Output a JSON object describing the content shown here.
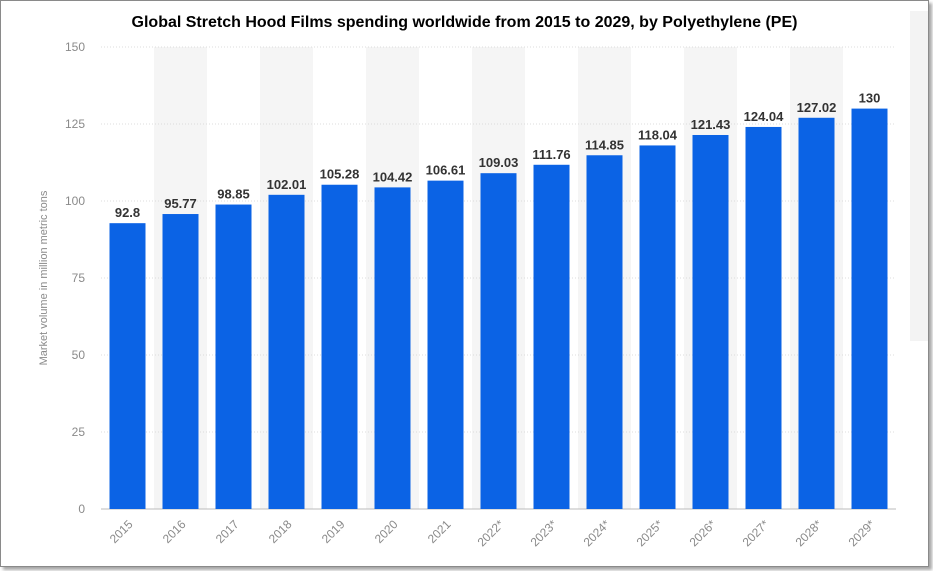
{
  "chart_data": {
    "type": "bar",
    "title": "Global Stretch Hood Films spending worldwide from 2015 to 2029, by Polyethylene (PE)",
    "ylabel": "Market volume in million metric tons",
    "xlabel": "",
    "categories": [
      "2015",
      "2016",
      "2017",
      "2018",
      "2019",
      "2020",
      "2021",
      "2022*",
      "2023*",
      "2024*",
      "2025*",
      "2026*",
      "2027*",
      "2028*",
      "2029*"
    ],
    "values": [
      92.8,
      95.77,
      98.85,
      102.01,
      105.28,
      104.42,
      106.61,
      109.03,
      111.76,
      114.85,
      118.04,
      121.43,
      124.04,
      127.02,
      130
    ],
    "value_labels": [
      "92.8",
      "95.77",
      "98.85",
      "102.01",
      "105.28",
      "104.42",
      "106.61",
      "109.03",
      "111.76",
      "114.85",
      "118.04",
      "121.43",
      "124.04",
      "127.02",
      "130"
    ],
    "ylim": [
      0,
      150
    ],
    "yticks": [
      "0",
      "25",
      "50",
      "75",
      "100",
      "125",
      "150"
    ],
    "grid": true,
    "legend": "none",
    "bar_color": "#0b63e5",
    "band_color": "#f5f5f5",
    "grid_color": "#dcdcdc",
    "tick_color": "#8a8a8a",
    "label_color": "#333333"
  }
}
